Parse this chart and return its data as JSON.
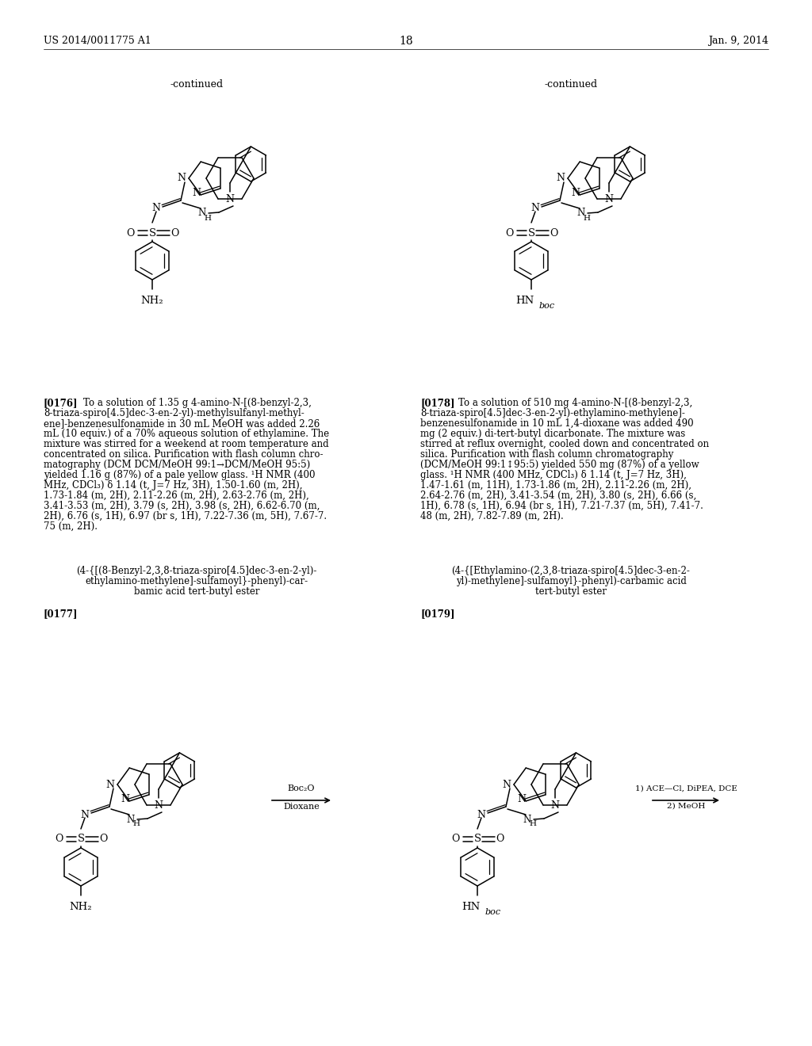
{
  "header_left": "US 2014/0011775 A1",
  "header_right": "Jan. 9, 2014",
  "page_number": "18",
  "continued": "-continued",
  "para176_bold": "[0176]",
  "para176_text": "To a solution of 1.35 g 4-amino-N-[(8-benzyl-2,3,\n8-triaza-spiro[4.5]dec-3-en-2-yl)-methylsulfanyl-methyl-\nene]-benzenesulfonamide in 30 mL MeOH was added 2.26\nmL (10 equiv.) of a 70% aqueous solution of ethylamine. The\nmixture was stirred for a weekend at room temperature and\nconcentrated on silica. Purification with flash column chro-\nmatography (DCM DCM/MeOH 99:1→DCM/MeOH 95:5)\nyielded 1.16 g (87%) of a pale yellow glass. ¹H NMR (400\nMHz, CDCl₃) δ 1.14 (t, J=7 Hz, 3H), 1.50-1.60 (m, 2H),\n1.73-1.84 (m, 2H), 2.11-2.26 (m, 2H), 2.63-2.76 (m, 2H),\n3.41-3.53 (m, 2H), 3.79 (s, 2H), 3.98 (s, 2H), 6.62-6.70 (m,\n2H), 6.76 (s, 1H), 6.97 (br s, 1H), 7.22-7.36 (m, 5H), 7.67-7.\n75 (m, 2H).",
  "para178_bold": "[0178]",
  "para178_text": "To a solution of 510 mg 4-amino-N-[(8-benzyl-2,3,\n8-triaza-spiro[4.5]dec-3-en-2-yl)-ethylamino-methylene]-\nbenzenesulfonamide in 10 mL 1,4-dioxane was added 490\nmg (2 equiv.) di-tert-butyl dicarbonate. The mixture was\nstirred at reflux overnight, cooled down and concentrated on\nsilica. Purification with flash column chromatography\n(DCM/MeOH 99:1↕95:5) yielded 550 mg (87%) of a yellow\nglass. ¹H NMR (400 MHz, CDCl₃) δ 1.14 (t, J=7 Hz, 3H),\n1.47-1.61 (m, 11H), 1.73-1.86 (m, 2H), 2.11-2.26 (m, 2H),\n2.64-2.76 (m, 2H), 3.41-3.54 (m, 2H), 3.80 (s, 2H), 6.66 (s,\n1H), 6.78 (s, 1H), 6.94 (br s, 1H), 7.21-7.37 (m, 5H), 7.41-7.\n48 (m, 2H), 7.82-7.89 (m, 2H).",
  "cname177": "(4-{[(8-Benzyl-2,3,8-triaza-spiro[4.5]dec-3-en-2-yl)-\nethylamino-methylene]-sulfamoyl}-phenyl)-car-\nbamic acid tert-butyl ester",
  "cname179": "(4-{[Ethylamino-(2,3,8-triaza-spiro[4.5]dec-3-en-2-\nyl)-methylene]-sulfamoyl}-phenyl)-carbamic acid\ntert-butyl ester",
  "para177_bold": "[0177]",
  "para179_bold": "[0179]",
  "reagent_left": "Boc₂O",
  "reagent_left2": "Dioxane",
  "reagent_right": "1) ACE—Cl, DiPEA, DCE",
  "reagent_right2": "2) MeOH"
}
